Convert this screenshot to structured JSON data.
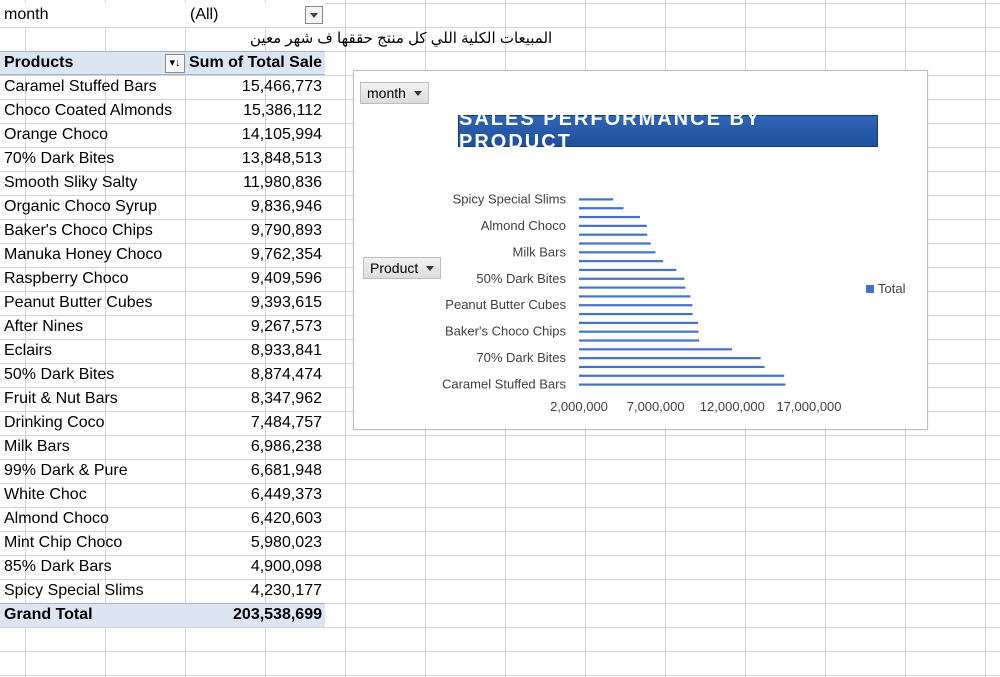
{
  "filter": {
    "label": "month",
    "value": "(All)"
  },
  "note": "المبيعات الكلية اللي كل منتج حققها ف شهر معين",
  "pivot": {
    "col1_header": "Products",
    "col2_header": "Sum of Total Sale",
    "sort_icon": "sort-desc-icon",
    "rows": [
      {
        "product": "Caramel Stuffed Bars",
        "total": "15,466,773"
      },
      {
        "product": "Choco Coated Almonds",
        "total": "15,386,112"
      },
      {
        "product": "Orange Choco",
        "total": "14,105,994"
      },
      {
        "product": "70% Dark Bites",
        "total": "13,848,513"
      },
      {
        "product": "Smooth Sliky Salty",
        "total": "11,980,836"
      },
      {
        "product": "Organic Choco Syrup",
        "total": "9,836,946"
      },
      {
        "product": "Baker's Choco Chips",
        "total": "9,790,893"
      },
      {
        "product": "Manuka Honey Choco",
        "total": "9,762,354"
      },
      {
        "product": "Raspberry Choco",
        "total": "9,409,596"
      },
      {
        "product": "Peanut Butter Cubes",
        "total": "9,393,615"
      },
      {
        "product": "After Nines",
        "total": "9,267,573"
      },
      {
        "product": "Eclairs",
        "total": "8,933,841"
      },
      {
        "product": "50% Dark Bites",
        "total": "8,874,474"
      },
      {
        "product": "Fruit & Nut Bars",
        "total": "8,347,962"
      },
      {
        "product": "Drinking Coco",
        "total": "7,484,757"
      },
      {
        "product": "Milk Bars",
        "total": "6,986,238"
      },
      {
        "product": "99% Dark & Pure",
        "total": "6,681,948"
      },
      {
        "product": "White Choc",
        "total": "6,449,373"
      },
      {
        "product": "Almond Choco",
        "total": "6,420,603"
      },
      {
        "product": "Mint Chip Choco",
        "total": "5,980,023"
      },
      {
        "product": "85% Dark Bars",
        "total": "4,900,098"
      },
      {
        "product": "Spicy Special Slims",
        "total": "4,230,177"
      }
    ],
    "grand_total_label": "Grand Total",
    "grand_total_value": "203,538,699"
  },
  "chart": {
    "month_button": "month",
    "product_button": "Product",
    "legend": "Total",
    "bar_color": "#4472c4",
    "title_color": "#2f64b8"
  },
  "chart_data": {
    "type": "bar",
    "orientation": "horizontal",
    "title": "SALES PERFORMANCE BY PRODUCT",
    "categories": [
      "Spicy Special Slims",
      "85% Dark Bars",
      "Mint Chip Choco",
      "Almond Choco",
      "White Choc",
      "99% Dark & Pure",
      "Milk Bars",
      "Drinking Coco",
      "Fruit & Nut Bars",
      "50% Dark Bites",
      "Eclairs",
      "After Nines",
      "Peanut Butter Cubes",
      "Raspberry Choco",
      "Manuka Honey Choco",
      "Baker's Choco Chips",
      "Organic Choco Syrup",
      "Smooth Sliky Salty",
      "70% Dark Bites",
      "Orange Choco",
      "Choco Coated Almonds",
      "Caramel Stuffed Bars"
    ],
    "shown_category_labels": [
      "Spicy Special Slims",
      "Almond Choco",
      "Milk Bars",
      "50% Dark Bites",
      "Peanut Butter Cubes",
      "Baker's Choco Chips",
      "70% Dark Bites",
      "Caramel Stuffed Bars"
    ],
    "series": [
      {
        "name": "Total",
        "values": [
          4230177,
          4900098,
          5980023,
          6420603,
          6449373,
          6681948,
          6986238,
          7484757,
          8347962,
          8874474,
          8933841,
          9267573,
          9393615,
          9409596,
          9762354,
          9790893,
          9836946,
          11980836,
          13848513,
          14105994,
          15386112,
          15466773
        ]
      }
    ],
    "xlim": [
      2000000,
      17000000
    ],
    "x_ticks": [
      "2,000,000",
      "7,000,000",
      "12,000,000",
      "17,000,000"
    ],
    "x_tick_values": [
      2000000,
      7000000,
      12000000,
      17000000
    ],
    "legend_position": "right",
    "grid": false
  }
}
